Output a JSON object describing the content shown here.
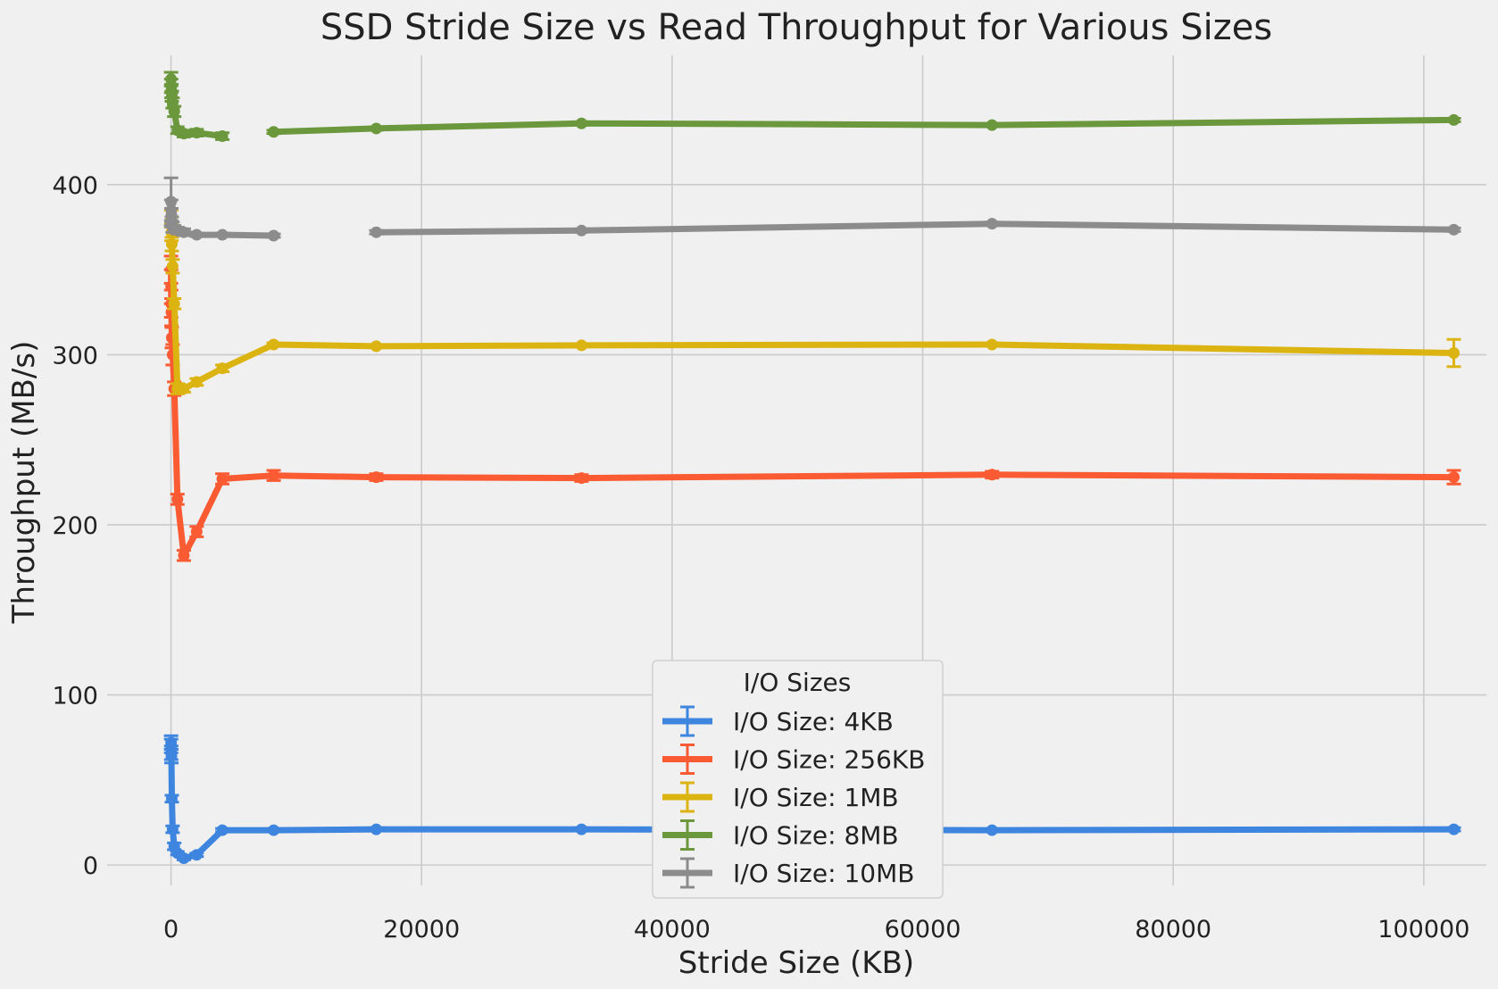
{
  "chart_data": {
    "type": "line",
    "title": "SSD Stride Size vs Read Throughput for Various Sizes",
    "xlabel": "Stride Size (KB)",
    "ylabel": "Throughput (MB/s)",
    "xlim": [
      -5100,
      105000
    ],
    "ylim": [
      -12,
      476
    ],
    "xticks": [
      0,
      20000,
      40000,
      60000,
      80000,
      100000
    ],
    "xtick_labels": [
      "0",
      "20000",
      "40000",
      "60000",
      "80000",
      "100000"
    ],
    "yticks": [
      0,
      100,
      200,
      300,
      400
    ],
    "ytick_labels": [
      "0",
      "100",
      "200",
      "300",
      "400"
    ],
    "grid": true,
    "legend": {
      "title": "I/O Sizes",
      "placement": "lower-center"
    },
    "series": [
      {
        "name": "I/O Size: 4KB",
        "color": "#3d85de",
        "points": [
          [
            4,
            72
          ],
          [
            8,
            70
          ],
          [
            16,
            66
          ],
          [
            32,
            64
          ],
          [
            64,
            39
          ],
          [
            128,
            21
          ],
          [
            256,
            11
          ],
          [
            512,
            7
          ],
          [
            1024,
            4
          ],
          [
            2048,
            6
          ],
          [
            4096,
            20.5
          ],
          [
            8192,
            20.5
          ],
          [
            16384,
            21
          ],
          [
            32768,
            21
          ],
          [
            65536,
            20.5
          ],
          [
            102400,
            21
          ]
        ],
        "errors": [
          4,
          4,
          4,
          4,
          2,
          2,
          2,
          1,
          1,
          1,
          1,
          1,
          1,
          1,
          1,
          1
        ]
      },
      {
        "name": "I/O Size: 256KB",
        "color": "#fb5b32",
        "points": [
          [
            4,
            350
          ],
          [
            8,
            340
          ],
          [
            16,
            330
          ],
          [
            32,
            325
          ],
          [
            64,
            310
          ],
          [
            128,
            300
          ],
          [
            256,
            280
          ],
          [
            512,
            215
          ],
          [
            1024,
            182
          ],
          [
            2048,
            196
          ],
          [
            4096,
            227
          ],
          [
            8192,
            229
          ],
          [
            16384,
            228
          ],
          [
            32768,
            227.5
          ],
          [
            65536,
            229.5
          ],
          [
            102400,
            228
          ]
        ],
        "errors": [
          8,
          10,
          8,
          8,
          6,
          6,
          4,
          3,
          3,
          3,
          3,
          3,
          2,
          2,
          2,
          4
        ]
      },
      {
        "name": "I/O Size: 1MB",
        "color": "#dcb412",
        "points": [
          [
            16,
            380
          ],
          [
            32,
            372
          ],
          [
            64,
            365
          ],
          [
            128,
            352
          ],
          [
            256,
            330
          ],
          [
            512,
            280
          ],
          [
            1024,
            280
          ],
          [
            2048,
            284
          ],
          [
            4096,
            292
          ],
          [
            8192,
            306
          ],
          [
            16384,
            305
          ],
          [
            32768,
            305.5
          ],
          [
            65536,
            306
          ],
          [
            102400,
            301
          ]
        ],
        "errors": [
          5,
          5,
          4,
          4,
          3,
          3,
          2,
          2,
          2,
          1,
          1,
          1,
          1,
          8
        ]
      },
      {
        "name": "I/O Size: 8MB",
        "color": "#6b983c",
        "points": [
          [
            4,
            462
          ],
          [
            16,
            458
          ],
          [
            32,
            455
          ],
          [
            64,
            452
          ],
          [
            128,
            448
          ],
          [
            256,
            443
          ],
          [
            512,
            432
          ],
          [
            1024,
            430
          ],
          [
            2048,
            430.5
          ],
          [
            4096,
            428.5
          ],
          [
            null,
            null
          ],
          [
            8192,
            431
          ],
          [
            16384,
            433
          ],
          [
            32768,
            436
          ],
          [
            65536,
            435
          ],
          [
            102400,
            438
          ]
        ],
        "errors": [
          4,
          4,
          4,
          3,
          3,
          3,
          2,
          2,
          2,
          2,
          0,
          1,
          1,
          1,
          1,
          1
        ]
      },
      {
        "name": "I/O Size: 10MB",
        "color": "#8c8c8c",
        "points": [
          [
            4,
            390
          ],
          [
            16,
            385
          ],
          [
            32,
            382
          ],
          [
            64,
            378
          ],
          [
            128,
            375
          ],
          [
            256,
            374
          ],
          [
            512,
            373
          ],
          [
            1024,
            372
          ],
          [
            2048,
            370.5
          ],
          [
            4096,
            370.5
          ],
          [
            8192,
            370
          ],
          [
            null,
            null
          ],
          [
            16384,
            372
          ],
          [
            32768,
            373
          ],
          [
            65536,
            377
          ],
          [
            102400,
            373.5
          ]
        ],
        "errors": [
          14,
          6,
          4,
          3,
          3,
          2,
          2,
          2,
          1,
          1,
          1,
          0,
          1,
          1,
          1,
          1
        ]
      }
    ]
  }
}
